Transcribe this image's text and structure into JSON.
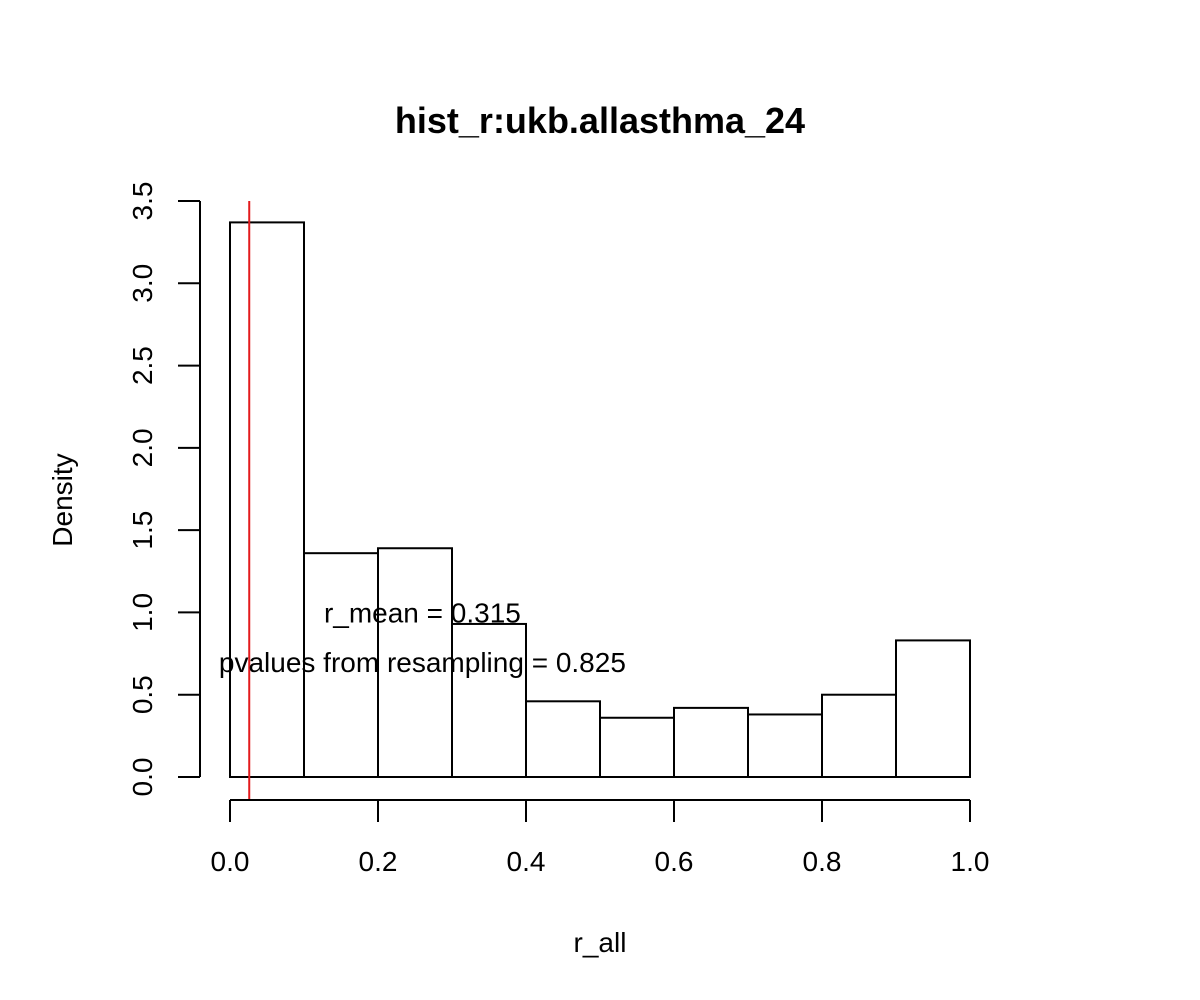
{
  "chart_data": {
    "type": "bar",
    "title": "hist_r:ukb.allasthma_24",
    "xlabel": "r_all",
    "ylabel": "Density",
    "bins": [
      {
        "start": 0.0,
        "end": 0.1,
        "density": 3.37
      },
      {
        "start": 0.1,
        "end": 0.2,
        "density": 1.36
      },
      {
        "start": 0.2,
        "end": 0.3,
        "density": 1.39
      },
      {
        "start": 0.3,
        "end": 0.4,
        "density": 0.93
      },
      {
        "start": 0.4,
        "end": 0.5,
        "density": 0.46
      },
      {
        "start": 0.5,
        "end": 0.6,
        "density": 0.36
      },
      {
        "start": 0.6,
        "end": 0.7,
        "density": 0.42
      },
      {
        "start": 0.7,
        "end": 0.8,
        "density": 0.38
      },
      {
        "start": 0.8,
        "end": 0.9,
        "density": 0.5
      },
      {
        "start": 0.9,
        "end": 1.0,
        "density": 0.83
      }
    ],
    "xlim": [
      0.0,
      1.0
    ],
    "ylim": [
      0.0,
      3.5
    ],
    "x_ticks": [
      "0.0",
      "0.2",
      "0.4",
      "0.6",
      "0.8",
      "1.0"
    ],
    "y_ticks": [
      "0.0",
      "0.5",
      "1.0",
      "1.5",
      "2.0",
      "2.5",
      "3.0",
      "3.5"
    ],
    "reference_line": {
      "x": 0.026,
      "color": "#e31a1c"
    },
    "annotations": [
      {
        "text": "r_mean = 0.315",
        "x": 0.26,
        "y": 1.0
      },
      {
        "text": "pvalues from resampling = 0.825",
        "x": 0.26,
        "y": 0.7
      }
    ],
    "grid": false,
    "legend": "none"
  }
}
